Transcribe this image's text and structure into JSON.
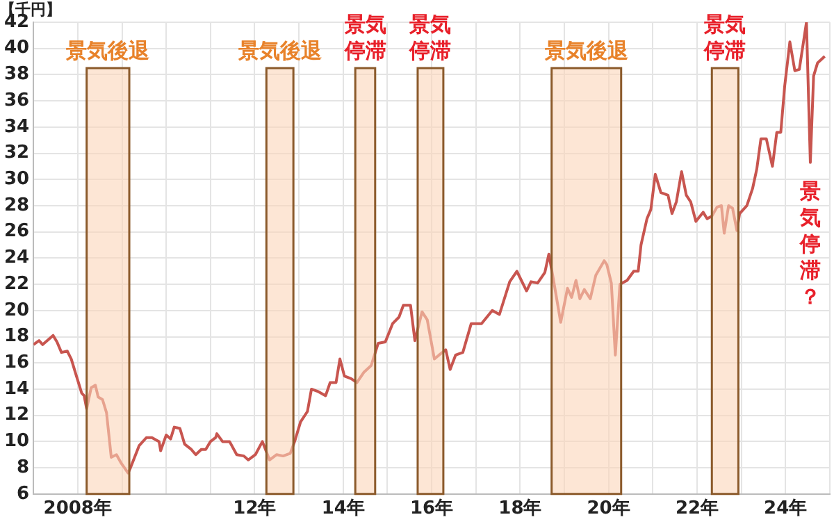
{
  "chart_data": {
    "type": "line",
    "ylabel": "【千円】",
    "xlim": [
      "2007-01-01",
      "2025-01-01"
    ],
    "xticks": [
      {
        "value": "2007",
        "label": null
      },
      {
        "value": "2008",
        "label": "2008年"
      },
      {
        "value": "2009",
        "label": null
      },
      {
        "value": "2010",
        "label": null
      },
      {
        "value": "2011",
        "label": null
      },
      {
        "value": "2012",
        "label": "12年"
      },
      {
        "value": "2013",
        "label": null
      },
      {
        "value": "2014",
        "label": "14年"
      },
      {
        "value": "2015",
        "label": null
      },
      {
        "value": "2016",
        "label": "16年"
      },
      {
        "value": "2017",
        "label": null
      },
      {
        "value": "2018",
        "label": "18年"
      },
      {
        "value": "2019",
        "label": null
      },
      {
        "value": "2020",
        "label": "20年"
      },
      {
        "value": "2021",
        "label": null
      },
      {
        "value": "2022",
        "label": "22年"
      },
      {
        "value": "2023",
        "label": null
      },
      {
        "value": "2024",
        "label": "24年"
      },
      {
        "value": "2025",
        "label": null
      }
    ],
    "ylim": [
      6,
      42
    ],
    "yticks": [
      6,
      8,
      10,
      12,
      14,
      16,
      18,
      20,
      22,
      24,
      26,
      28,
      30,
      32,
      34,
      36,
      38,
      40,
      42
    ],
    "grid": true,
    "legend": false,
    "marker": "none",
    "line_style": "solid",
    "series": [
      {
        "color": "#c8554f",
        "x": [
          "2007-01-01",
          "2007-02-16",
          "2007-03-18",
          "2007-06-12",
          "2007-07-14",
          "2007-08-20",
          "2007-10-07",
          "2007-11-09",
          "2007-12-15",
          "2008-02-03",
          "2008-02-23",
          "2008-03-15",
          "2008-04-21",
          "2008-05-26",
          "2008-06-18",
          "2008-07-24",
          "2008-08-26",
          "2008-10-04",
          "2008-11-16",
          "2008-12-22",
          "2009-02-20",
          "2009-03-12",
          "2009-05-23",
          "2009-07-21",
          "2009-09-05",
          "2009-11-03",
          "2009-11-16",
          "2010-01-01",
          "2010-02-06",
          "2010-03-08",
          "2010-04-24",
          "2010-06-02",
          "2010-07-27",
          "2010-09-02",
          "2010-10-17",
          "2010-11-23",
          "2011-01-01",
          "2011-02-13",
          "2011-02-23",
          "2011-04-11",
          "2011-06-08",
          "2011-08-06",
          "2011-10-04",
          "2011-11-09",
          "2012-01-07",
          "2012-03-05",
          "2012-05-03",
          "2012-07-01",
          "2012-08-23",
          "2012-10-21",
          "2012-11-26",
          "2013-01-14",
          "2013-03-12",
          "2013-04-14",
          "2013-06-12",
          "2013-08-09",
          "2013-09-15",
          "2013-11-03",
          "2013-12-05",
          "2014-01-11",
          "2014-03-08",
          "2014-04-24",
          "2014-06-22",
          "2014-08-20",
          "2014-10-17",
          "2014-12-15",
          "2015-02-13",
          "2015-04-07",
          "2015-05-13",
          "2015-07-11",
          "2015-08-16",
          "2015-10-14",
          "2015-11-26",
          "2016-01-24",
          "2016-03-02",
          "2016-04-27",
          "2016-06-02",
          "2016-07-17",
          "2016-09-15",
          "2016-11-23",
          "2017-02-16",
          "2017-05-16",
          "2017-07-14",
          "2017-10-07",
          "2017-12-05",
          "2018-02-23",
          "2018-04-01",
          "2018-05-26",
          "2018-07-24",
          "2018-08-26",
          "2018-10-04",
          "2018-12-02",
          "2019-01-27",
          "2019-03-02",
          "2019-04-07",
          "2019-05-09",
          "2019-06-15",
          "2019-08-03",
          "2019-09-18",
          "2019-11-26",
          "2019-12-18",
          "2020-01-24",
          "2020-02-26",
          "2020-04-04",
          "2020-06-02",
          "2020-07-27",
          "2020-09-02",
          "2020-09-25",
          "2020-11-13",
          "2020-12-15",
          "2021-01-21",
          "2021-03-08",
          "2021-05-06",
          "2021-06-08",
          "2021-07-14",
          "2021-08-26",
          "2021-10-04",
          "2021-11-09",
          "2021-12-22",
          "2022-02-20",
          "2022-03-25",
          "2022-05-03",
          "2022-06-15",
          "2022-07-21",
          "2022-08-13",
          "2022-09-18",
          "2022-10-21",
          "2022-11-26",
          "2022-12-18",
          "2023-02-16",
          "2023-04-04",
          "2023-05-09",
          "2023-06-12",
          "2023-07-27",
          "2023-09-15",
          "2023-10-21",
          "2023-11-23",
          "2023-12-25",
          "2024-02-06",
          "2024-03-18",
          "2024-04-24",
          "2024-06-22",
          "2024-07-24",
          "2024-08-20",
          "2024-09-22",
          "2024-11-20"
        ],
        "values": [
          17.4,
          17.7,
          17.4,
          18.1,
          17.6,
          16.8,
          16.9,
          16.3,
          15.2,
          13.7,
          13.5,
          12.5,
          14.1,
          14.3,
          13.4,
          13.2,
          12.2,
          8.8,
          9.0,
          8.4,
          7.6,
          8.0,
          9.7,
          10.3,
          10.3,
          10.0,
          9.3,
          10.5,
          10.2,
          11.1,
          11.0,
          9.8,
          9.4,
          9.0,
          9.4,
          9.4,
          10.0,
          10.3,
          10.6,
          10.0,
          10.0,
          9.0,
          8.9,
          8.6,
          9.0,
          10.0,
          8.6,
          9.0,
          8.9,
          9.1,
          10.0,
          11.5,
          12.3,
          14.0,
          13.8,
          13.5,
          14.5,
          14.5,
          16.3,
          15.0,
          14.8,
          14.5,
          15.3,
          15.8,
          17.5,
          17.6,
          19.0,
          19.5,
          20.4,
          20.4,
          17.7,
          19.9,
          19.3,
          16.3,
          16.6,
          17.0,
          15.5,
          16.6,
          16.8,
          19.0,
          19.0,
          20.0,
          19.7,
          22.2,
          23.0,
          21.5,
          22.2,
          22.1,
          22.9,
          24.3,
          22.3,
          19.1,
          21.7,
          21.0,
          22.3,
          20.9,
          21.6,
          20.9,
          22.7,
          23.8,
          23.5,
          22.1,
          16.6,
          22.0,
          22.3,
          23.0,
          23.0,
          25.0,
          27.0,
          27.7,
          30.4,
          29.0,
          28.8,
          27.4,
          28.3,
          30.6,
          28.8,
          28.3,
          26.8,
          27.5,
          27.0,
          27.2,
          27.9,
          28.0,
          25.9,
          28.0,
          27.8,
          26.1,
          27.4,
          28.0,
          29.3,
          30.8,
          33.1,
          33.1,
          31.0,
          33.6,
          33.6,
          37.1,
          40.5,
          38.3,
          38.4,
          42.0,
          31.3,
          37.9,
          38.9,
          39.4
        ]
      }
    ],
    "bands": [
      {
        "axis": "x",
        "from": "2008-03-15",
        "to": "2009-03-02",
        "label": "景気後退",
        "color": "#fbd6b9"
      },
      {
        "axis": "x",
        "from": "2012-04-07",
        "to": "2012-11-16",
        "label": "景気後退",
        "color": "#fbd6b9"
      },
      {
        "axis": "x",
        "from": "2014-04-11",
        "to": "2014-09-22",
        "label": "景気停滞",
        "color": "#fbd6b9"
      },
      {
        "axis": "x",
        "from": "2015-09-08",
        "to": "2016-04-07",
        "label": "景気停滞",
        "color": "#fbd6b9"
      },
      {
        "axis": "x",
        "from": "2018-09-18",
        "to": "2020-04-14",
        "label": "景気後退",
        "color": "#fbd6b9"
      },
      {
        "axis": "x",
        "from": "2022-05-03",
        "to": "2022-12-08",
        "label": "景気停滞",
        "color": "#fbd6b9"
      }
    ],
    "annotations": [
      {
        "text": "景気停滞？",
        "x": "2024-07-24",
        "y": 31.3
      }
    ]
  }
}
